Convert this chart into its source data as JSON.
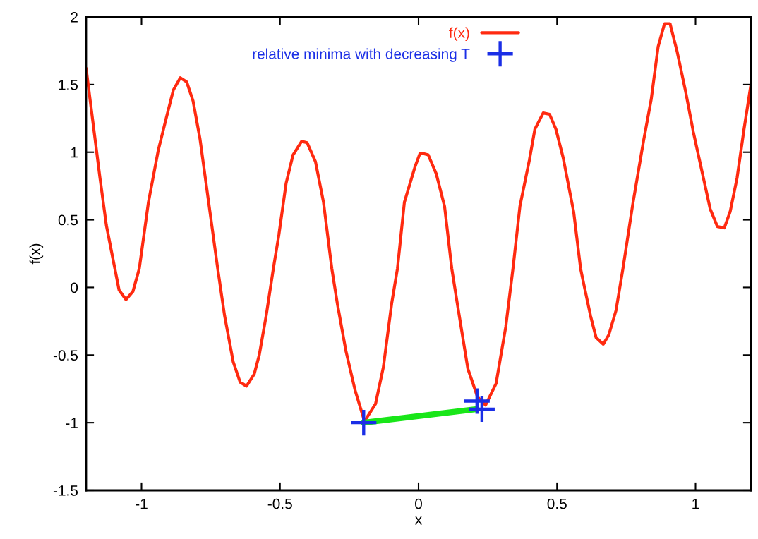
{
  "chart_data": {
    "type": "line",
    "xlabel": "x",
    "ylabel": "f(x)",
    "xlim": [
      -1.2,
      1.2
    ],
    "ylim": [
      -1.5,
      2
    ],
    "xticks": [
      -1,
      -0.5,
      0,
      0.5,
      1
    ],
    "yticks": [
      -1.5,
      -1,
      -0.5,
      0,
      0.5,
      1,
      1.5,
      2
    ],
    "grid": false,
    "legend": "top",
    "line_style": "solid",
    "series": [
      {
        "name": "f(x)",
        "color": "#ff2a10",
        "marker": "none",
        "x": [
          -1.2,
          -1.15,
          -1.127,
          -1.081,
          -1.056,
          -1.031,
          -1.008,
          -0.975,
          -0.94,
          -0.911,
          -0.885,
          -0.86,
          -0.837,
          -0.814,
          -0.789,
          -0.753,
          -0.725,
          -0.7,
          -0.669,
          -0.644,
          -0.621,
          -0.593,
          -0.575,
          -0.55,
          -0.524,
          -0.504,
          -0.478,
          -0.453,
          -0.422,
          -0.402,
          -0.372,
          -0.343,
          -0.313,
          -0.293,
          -0.262,
          -0.229,
          -0.195,
          -0.155,
          -0.127,
          -0.097,
          -0.076,
          -0.051,
          -0.013,
          0.005,
          0.018,
          0.035,
          0.064,
          0.094,
          0.12,
          0.14,
          0.178,
          0.213,
          0.242,
          0.28,
          0.315,
          0.341,
          0.366,
          0.4,
          0.42,
          0.45,
          0.473,
          0.496,
          0.522,
          0.56,
          0.585,
          0.595,
          0.621,
          0.641,
          0.667,
          0.687,
          0.713,
          0.738,
          0.773,
          0.812,
          0.84,
          0.865,
          0.888,
          0.908,
          0.934,
          0.964,
          0.992,
          1.023,
          1.053,
          1.079,
          1.104,
          1.125,
          1.15,
          1.175,
          1.2
        ],
        "values": [
          1.62,
          0.81,
          0.46,
          -0.02,
          -0.09,
          -0.03,
          0.14,
          0.63,
          1.01,
          1.25,
          1.46,
          1.55,
          1.52,
          1.38,
          1.1,
          0.56,
          0.14,
          -0.21,
          -0.55,
          -0.7,
          -0.73,
          -0.64,
          -0.5,
          -0.21,
          0.14,
          0.39,
          0.77,
          0.98,
          1.08,
          1.07,
          0.93,
          0.63,
          0.14,
          -0.12,
          -0.47,
          -0.76,
          -0.99,
          -0.86,
          -0.59,
          -0.12,
          0.14,
          0.63,
          0.89,
          0.99,
          0.99,
          0.98,
          0.84,
          0.6,
          0.14,
          -0.12,
          -0.6,
          -0.81,
          -0.87,
          -0.71,
          -0.29,
          0.14,
          0.6,
          0.94,
          1.17,
          1.29,
          1.28,
          1.17,
          0.96,
          0.56,
          0.14,
          0.04,
          -0.21,
          -0.37,
          -0.42,
          -0.35,
          -0.17,
          0.14,
          0.61,
          1.08,
          1.39,
          1.78,
          1.95,
          1.95,
          1.74,
          1.45,
          1.15,
          0.86,
          0.58,
          0.45,
          0.44,
          0.56,
          0.81,
          1.17,
          1.5
        ]
      },
      {
        "color": "#19e619",
        "marker": "none",
        "x": [
          -0.198,
          0.211
        ],
        "values": [
          -1.0,
          -0.9
        ]
      },
      {
        "name": "relative minima with decreasing T",
        "type": "scatter",
        "color": "#1a2ee6",
        "marker": "cross",
        "x": [
          -0.198,
          0.211,
          0.229
        ],
        "values": [
          -1.0,
          -0.84,
          -0.9
        ]
      }
    ]
  }
}
